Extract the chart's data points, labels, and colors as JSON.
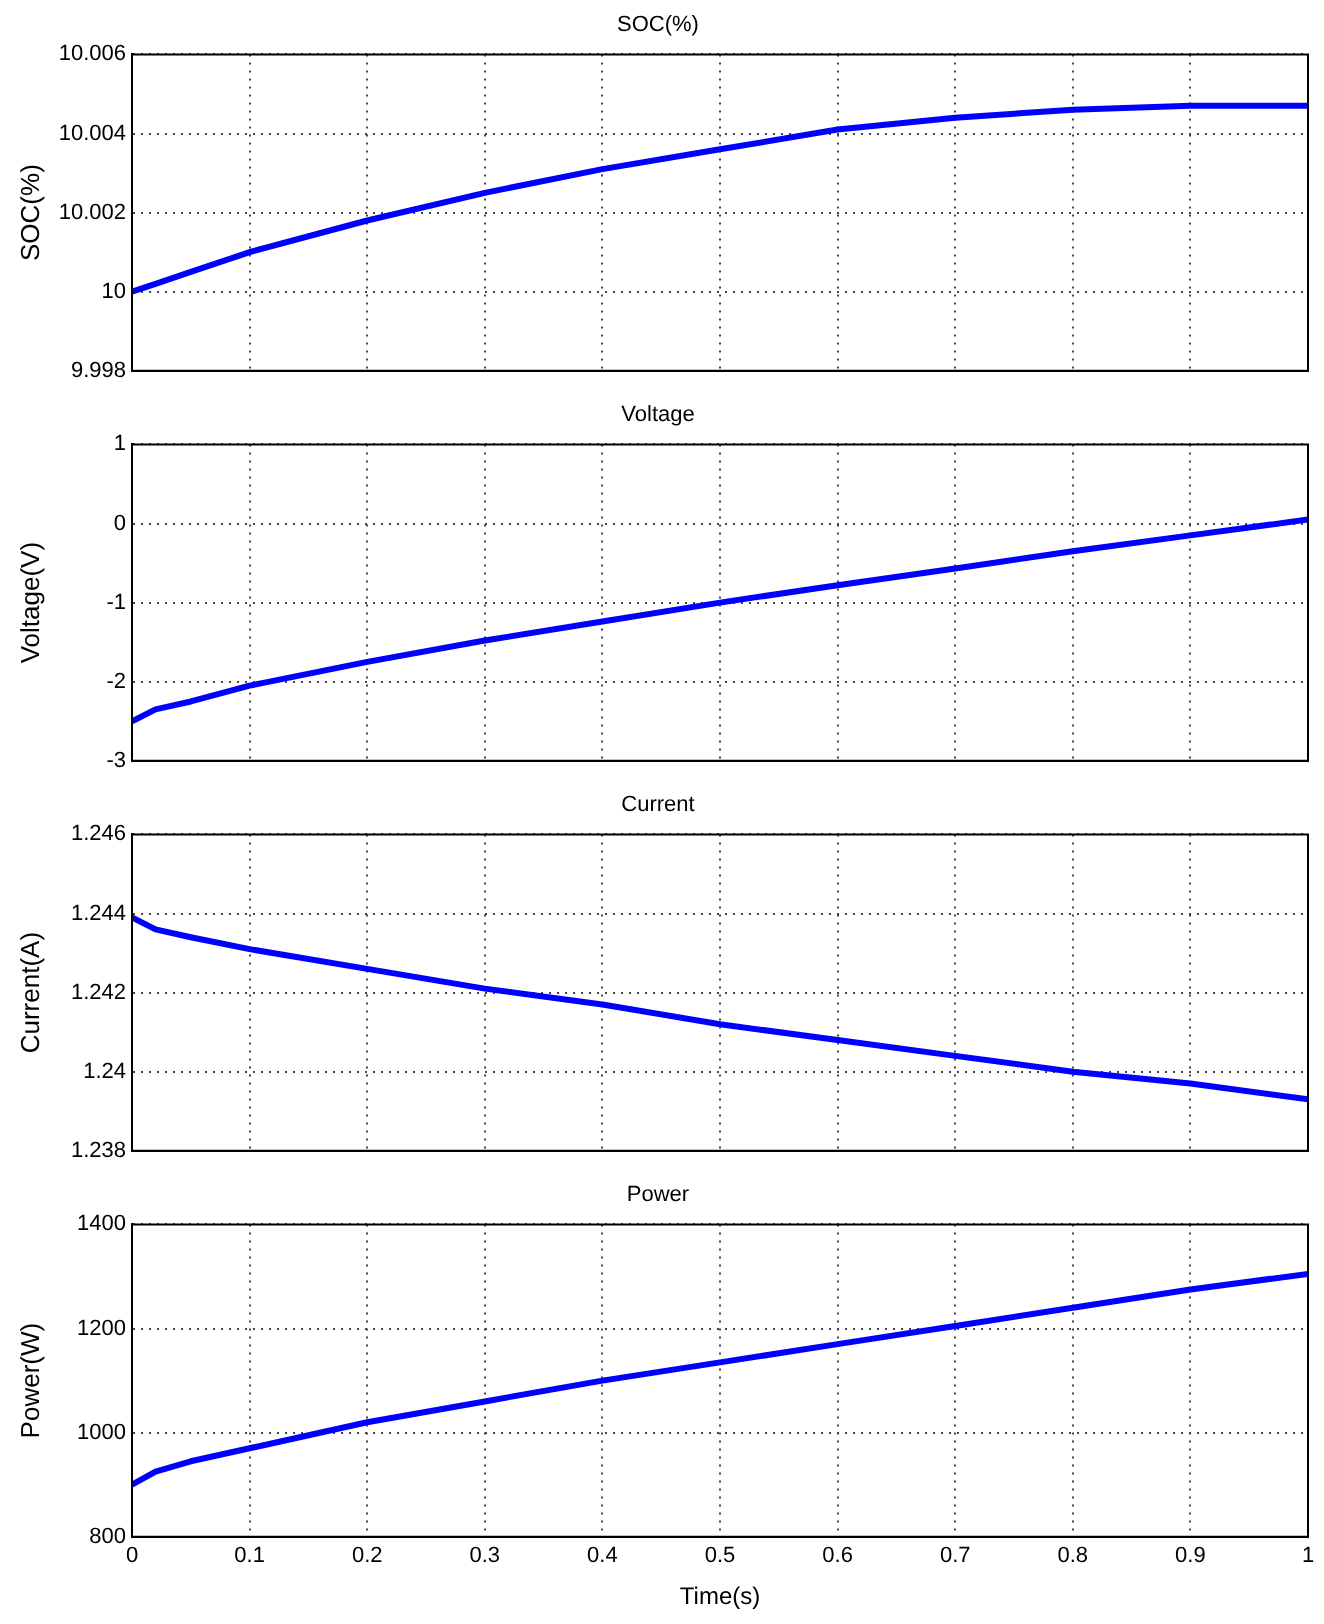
{
  "chart_data": [
    {
      "type": "line",
      "title": "SOC(%)",
      "ylabel": "SOC(%)",
      "x": [
        0,
        0.02,
        0.05,
        0.1,
        0.2,
        0.3,
        0.4,
        0.5,
        0.6,
        0.7,
        0.8,
        0.9,
        1
      ],
      "series": [
        {
          "color": "#0000ff",
          "values": [
            10.0,
            10.0002,
            10.0005,
            10.001,
            10.0018,
            10.0025,
            10.0031,
            10.0036,
            10.0041,
            10.0044,
            10.0046,
            10.0047,
            10.0047
          ]
        }
      ],
      "xlim": [
        0,
        1
      ],
      "xticks": [
        0,
        0.1,
        0.2,
        0.3,
        0.4,
        0.5,
        0.6,
        0.7,
        0.8,
        0.9,
        1
      ],
      "ylim": [
        9.998,
        10.006
      ],
      "yticks": [
        9.998,
        10,
        10.002,
        10.004,
        10.006
      ],
      "grid": true,
      "legend": false,
      "tick_labels": "y"
    },
    {
      "type": "line",
      "title": "Voltage",
      "ylabel": "Voltage(V)",
      "x": [
        0,
        0.02,
        0.05,
        0.1,
        0.2,
        0.3,
        0.4,
        0.5,
        0.6,
        0.7,
        0.8,
        0.9,
        1
      ],
      "series": [
        {
          "color": "#0000ff",
          "values": [
            -2.5,
            -2.35,
            -2.25,
            -2.05,
            -1.75,
            -1.48,
            -1.24,
            -1.0,
            -0.78,
            -0.57,
            -0.35,
            -0.15,
            0.05
          ]
        }
      ],
      "xlim": [
        0,
        1
      ],
      "xticks": [
        0,
        0.1,
        0.2,
        0.3,
        0.4,
        0.5,
        0.6,
        0.7,
        0.8,
        0.9,
        1
      ],
      "ylim": [
        -3,
        1
      ],
      "yticks": [
        -3,
        -2,
        -1,
        0,
        1
      ],
      "grid": true,
      "legend": false,
      "tick_labels": "y"
    },
    {
      "type": "line",
      "title": "Current",
      "ylabel": "Current(A)",
      "x": [
        0,
        0.02,
        0.05,
        0.1,
        0.2,
        0.3,
        0.4,
        0.5,
        0.6,
        0.7,
        0.8,
        0.9,
        1
      ],
      "series": [
        {
          "color": "#0000ff",
          "values": [
            1.2439,
            1.2436,
            1.2434,
            1.2431,
            1.2426,
            1.2421,
            1.2417,
            1.2412,
            1.2408,
            1.2404,
            1.24,
            1.2397,
            1.2393
          ]
        }
      ],
      "xlim": [
        0,
        1
      ],
      "xticks": [
        0,
        0.1,
        0.2,
        0.3,
        0.4,
        0.5,
        0.6,
        0.7,
        0.8,
        0.9,
        1
      ],
      "ylim": [
        1.238,
        1.246
      ],
      "yticks": [
        1.238,
        1.24,
        1.242,
        1.244,
        1.246
      ],
      "grid": true,
      "legend": false,
      "tick_labels": "y"
    },
    {
      "type": "line",
      "title": "Power",
      "ylabel": "Power(W)",
      "xlabel": "Time(s)",
      "x": [
        0,
        0.02,
        0.05,
        0.1,
        0.2,
        0.3,
        0.4,
        0.5,
        0.6,
        0.7,
        0.8,
        0.9,
        1
      ],
      "series": [
        {
          "color": "#0000ff",
          "values": [
            900,
            925,
            945,
            970,
            1020,
            1060,
            1100,
            1135,
            1170,
            1205,
            1240,
            1275,
            1305
          ]
        }
      ],
      "xlim": [
        0,
        1
      ],
      "xticks": [
        0,
        0.1,
        0.2,
        0.3,
        0.4,
        0.5,
        0.6,
        0.7,
        0.8,
        0.9,
        1
      ],
      "ylim": [
        800,
        1400
      ],
      "yticks": [
        800,
        1000,
        1200,
        1400
      ],
      "grid": true,
      "legend": false
    }
  ]
}
